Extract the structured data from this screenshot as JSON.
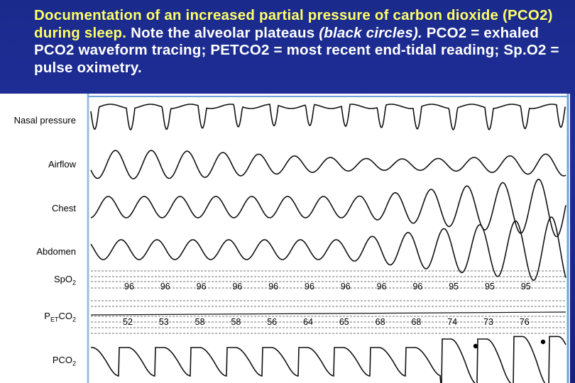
{
  "caption": {
    "part1": "Documentation of an increased partial pressure of carbon dioxide (PCO2) during sleep.",
    "part2": " Note the alveolar plateaus ",
    "part3": "(black circles).",
    "part4": "  PCO2 = exhaled PCO2 waveform tracing; PETCO2 = most recent end-tidal reading; Sp.O2 = pulse oximetry."
  },
  "channels": {
    "nasal": "Nasal pressure",
    "airflow": "Airflow",
    "chest": "Chest",
    "abdomen": "Abdomen",
    "spo2_main": "SpO",
    "spo2_sub": "2",
    "petco2_p": "P",
    "petco2_sub1": "ET",
    "petco2_co": "CO",
    "petco2_sub2": "2",
    "pco2_main": "PCO",
    "pco2_sub": "2"
  },
  "spo2_values": [
    "96",
    "96",
    "96",
    "96",
    "96",
    "96",
    "96",
    "96",
    "96",
    "95",
    "95",
    "95"
  ],
  "petco2_values": [
    "52",
    "53",
    "58",
    "58",
    "56",
    "64",
    "65",
    "68",
    "68",
    "74",
    "73",
    "76"
  ],
  "colors": {
    "background": "#1a2a8c",
    "panel": "#ffffff",
    "caption": "#ffffff",
    "highlight": "#ffff66",
    "frame": "#6fa3d8"
  }
}
